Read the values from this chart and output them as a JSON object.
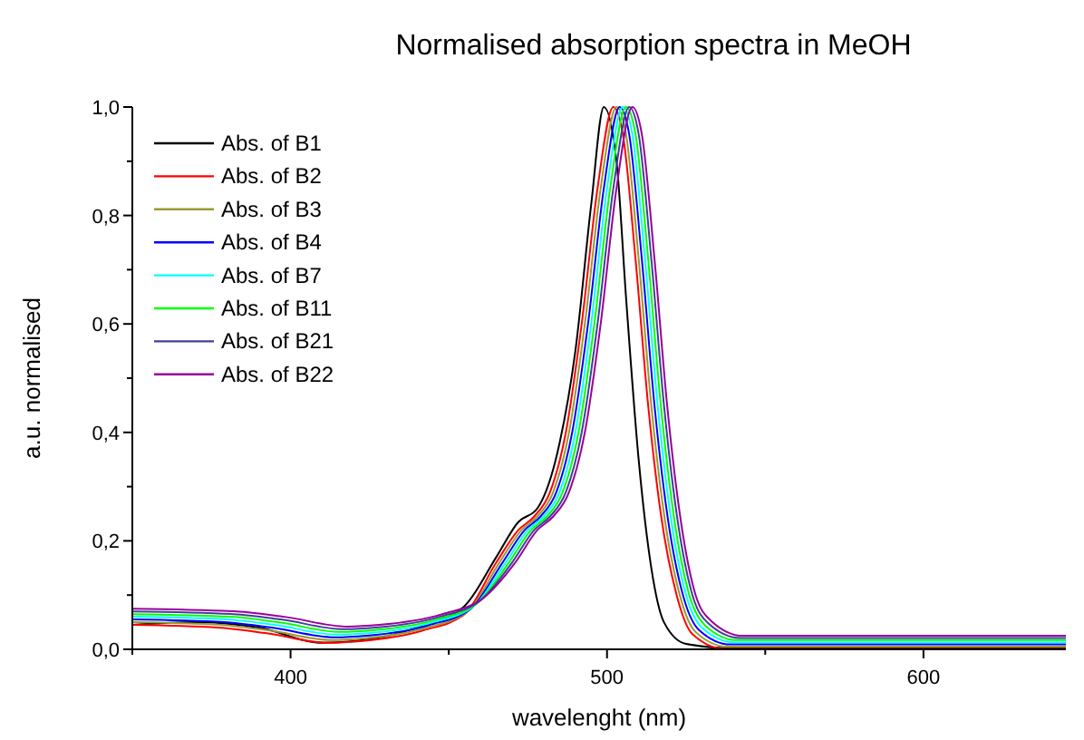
{
  "chart_data": {
    "type": "line",
    "title": "Normalised absorption spectra in MeOH",
    "xlabel": "wavelenght (nm)",
    "ylabel": "a.u. normalised",
    "xlim": [
      350,
      645
    ],
    "xticks": [
      {
        "value": 350,
        "label": null
      },
      400,
      {
        "value": 450,
        "label": null
      },
      500,
      {
        "value": 550,
        "label": null
      },
      600
    ],
    "ylim": [
      0,
      1
    ],
    "yticks": [
      {
        "value": 0,
        "label": "0,0"
      },
      {
        "value": 0.1,
        "label": null
      },
      {
        "value": 0.2,
        "label": "0,2"
      },
      {
        "value": 0.3,
        "label": null
      },
      {
        "value": 0.4,
        "label": "0,4"
      },
      {
        "value": 0.5,
        "label": null
      },
      {
        "value": 0.6,
        "label": "0,6"
      },
      {
        "value": 0.7,
        "label": null
      },
      {
        "value": 0.8,
        "label": "0,8"
      },
      {
        "value": 0.9,
        "label": null
      },
      {
        "value": 1,
        "label": "1,0"
      }
    ],
    "grid": false,
    "legend": "top left",
    "marker": "none",
    "line_style": "solid",
    "series": [
      {
        "name": "Abs. of B1",
        "color": "#000000",
        "x": [
          350,
          370,
          390,
          410,
          420,
          440,
          455,
          465,
          472,
          478,
          485,
          490,
          495,
          499,
          503,
          506,
          510,
          514,
          518,
          525,
          540,
          645
        ],
        "values": [
          0.045,
          0.05,
          0.04,
          0.012,
          0.015,
          0.04,
          0.08,
          0.17,
          0.235,
          0.26,
          0.38,
          0.55,
          0.82,
          1.0,
          0.9,
          0.65,
          0.35,
          0.15,
          0.05,
          0.01,
          0.002,
          0.002
        ]
      },
      {
        "name": "Abs. of B2",
        "color": "#ff0000",
        "x": [
          350,
          377,
          392,
          412,
          422,
          442,
          455,
          465,
          472,
          477,
          482,
          487,
          492,
          497,
          502,
          505,
          509,
          513,
          517,
          522,
          527,
          537,
          557,
          645
        ],
        "values": [
          0.045,
          0.04,
          0.03,
          0.012,
          0.015,
          0.035,
          0.065,
          0.16,
          0.22,
          0.245,
          0.29,
          0.4,
          0.6,
          0.85,
          1.0,
          0.95,
          0.72,
          0.45,
          0.25,
          0.1,
          0.028,
          0.001,
          0.001,
          0.001
        ]
      },
      {
        "name": "Abs. of B3",
        "color": "#999933",
        "x": [
          350,
          378,
          393,
          413,
          423,
          443,
          456,
          466,
          473,
          478,
          483,
          488,
          493,
          498,
          503,
          506,
          510,
          514,
          518,
          523,
          528,
          538,
          558,
          645
        ],
        "values": [
          0.05,
          0.045,
          0.035,
          0.017,
          0.02,
          0.04,
          0.07,
          0.16,
          0.22,
          0.245,
          0.29,
          0.4,
          0.6,
          0.85,
          1.0,
          0.95,
          0.72,
          0.45,
          0.25,
          0.1,
          0.032,
          0.005,
          0.005,
          0.005
        ]
      },
      {
        "name": "Abs. of B4",
        "color": "#0000ff",
        "x": [
          350,
          379,
          394,
          414,
          424,
          444,
          457,
          467,
          474,
          479,
          484,
          489,
          494,
          499,
          504,
          507,
          511,
          515,
          519,
          524,
          529,
          539,
          559,
          645
        ],
        "values": [
          0.055,
          0.05,
          0.04,
          0.022,
          0.025,
          0.045,
          0.075,
          0.16,
          0.22,
          0.245,
          0.29,
          0.4,
          0.6,
          0.85,
          1.0,
          0.95,
          0.72,
          0.45,
          0.25,
          0.1,
          0.036,
          0.009,
          0.009,
          0.009
        ]
      },
      {
        "name": "Abs. of B7",
        "color": "#00ffff",
        "x": [
          350,
          380,
          395,
          415,
          425,
          445,
          458,
          468,
          475,
          480,
          485,
          490,
          495,
          500,
          505,
          508,
          512,
          516,
          520,
          525,
          530,
          540,
          560,
          645
        ],
        "values": [
          0.06,
          0.055,
          0.045,
          0.027,
          0.03,
          0.05,
          0.08,
          0.16,
          0.22,
          0.245,
          0.29,
          0.4,
          0.6,
          0.85,
          1.0,
          0.95,
          0.72,
          0.45,
          0.25,
          0.1,
          0.04,
          0.013,
          0.013,
          0.013
        ]
      },
      {
        "name": "Abs. of B11",
        "color": "#00ff00",
        "x": [
          350,
          381,
          396,
          416,
          426,
          446,
          459,
          469,
          476,
          481,
          486,
          491,
          496,
          501,
          506,
          509,
          513,
          517,
          521,
          526,
          531,
          541,
          561,
          645
        ],
        "values": [
          0.065,
          0.06,
          0.05,
          0.032,
          0.035,
          0.055,
          0.085,
          0.16,
          0.22,
          0.245,
          0.29,
          0.4,
          0.6,
          0.85,
          1.0,
          0.95,
          0.72,
          0.45,
          0.25,
          0.1,
          0.044,
          0.017,
          0.017,
          0.017
        ]
      },
      {
        "name": "Abs. of B21",
        "color": "#3f3f9f",
        "x": [
          350,
          382,
          397,
          417,
          427,
          447,
          460,
          470,
          477,
          482,
          487,
          492,
          497,
          502,
          507,
          510,
          514,
          518,
          522,
          527,
          532,
          542,
          562,
          645
        ],
        "values": [
          0.07,
          0.065,
          0.055,
          0.037,
          0.04,
          0.06,
          0.09,
          0.16,
          0.22,
          0.245,
          0.29,
          0.4,
          0.6,
          0.85,
          1.0,
          0.95,
          0.72,
          0.45,
          0.25,
          0.1,
          0.048,
          0.021,
          0.021,
          0.021
        ]
      },
      {
        "name": "Abs. of B22",
        "color": "#990099",
        "x": [
          350,
          383,
          398,
          418,
          428,
          448,
          461,
          471,
          478,
          483,
          488,
          493,
          498,
          503,
          508,
          511,
          515,
          519,
          523,
          528,
          533,
          543,
          563,
          645
        ],
        "values": [
          0.075,
          0.07,
          0.06,
          0.042,
          0.045,
          0.065,
          0.095,
          0.16,
          0.22,
          0.245,
          0.29,
          0.4,
          0.6,
          0.85,
          1.0,
          0.95,
          0.72,
          0.45,
          0.25,
          0.1,
          0.052,
          0.025,
          0.025,
          0.025
        ]
      }
    ]
  }
}
